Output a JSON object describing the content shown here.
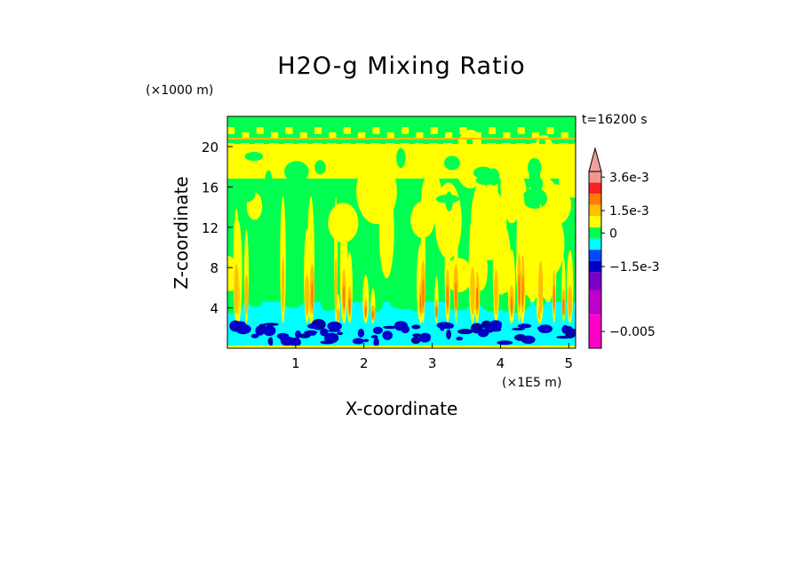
{
  "chart_data": {
    "type": "heatmap",
    "title": "H2O-g Mixing Ratio",
    "xlabel": "X-coordinate",
    "ylabel": "Z-coordinate",
    "x_unit": "(×1E5 m)",
    "z_unit": "(×1000 m)",
    "time_label": "t=16200 s",
    "xlim": [
      0,
      5.1
    ],
    "ylim": [
      0,
      23
    ],
    "x_ticks": [
      1,
      2,
      3,
      4,
      5
    ],
    "y_ticks": [
      4,
      8,
      12,
      16,
      20
    ],
    "colorbar": {
      "labels": [
        {
          "text": "3.6e-3",
          "level": 3.6
        },
        {
          "text": "1.5e-3",
          "level": 1.5
        },
        {
          "text": "0",
          "level": 0
        },
        {
          "text": "−1.5e-3",
          "level": -1.5
        },
        {
          "text": "−0.005",
          "level": -5
        }
      ],
      "bins": [
        {
          "color": "#f2978f"
        },
        {
          "color": "#ff2020"
        },
        {
          "color": "#ff7c00"
        },
        {
          "color": "#ffbf00"
        },
        {
          "color": "#ffff00"
        },
        {
          "color": "#00ff50"
        },
        {
          "color": "#00ffff"
        },
        {
          "color": "#0048ff"
        },
        {
          "color": "#0000c8"
        },
        {
          "color": "#7a00c8"
        },
        {
          "color": "#c000c8"
        },
        {
          "color": "#ff00c8"
        }
      ],
      "overflow_color": "#f0a0a0"
    }
  },
  "colors": {
    "yellow": "#ffff00",
    "green": "#00ff50",
    "cyan": "#00ffff",
    "blue": "#0000c8",
    "dark_blue": "#0000a0",
    "orange": "#ffbf00",
    "red_orange": "#ff7c00"
  }
}
